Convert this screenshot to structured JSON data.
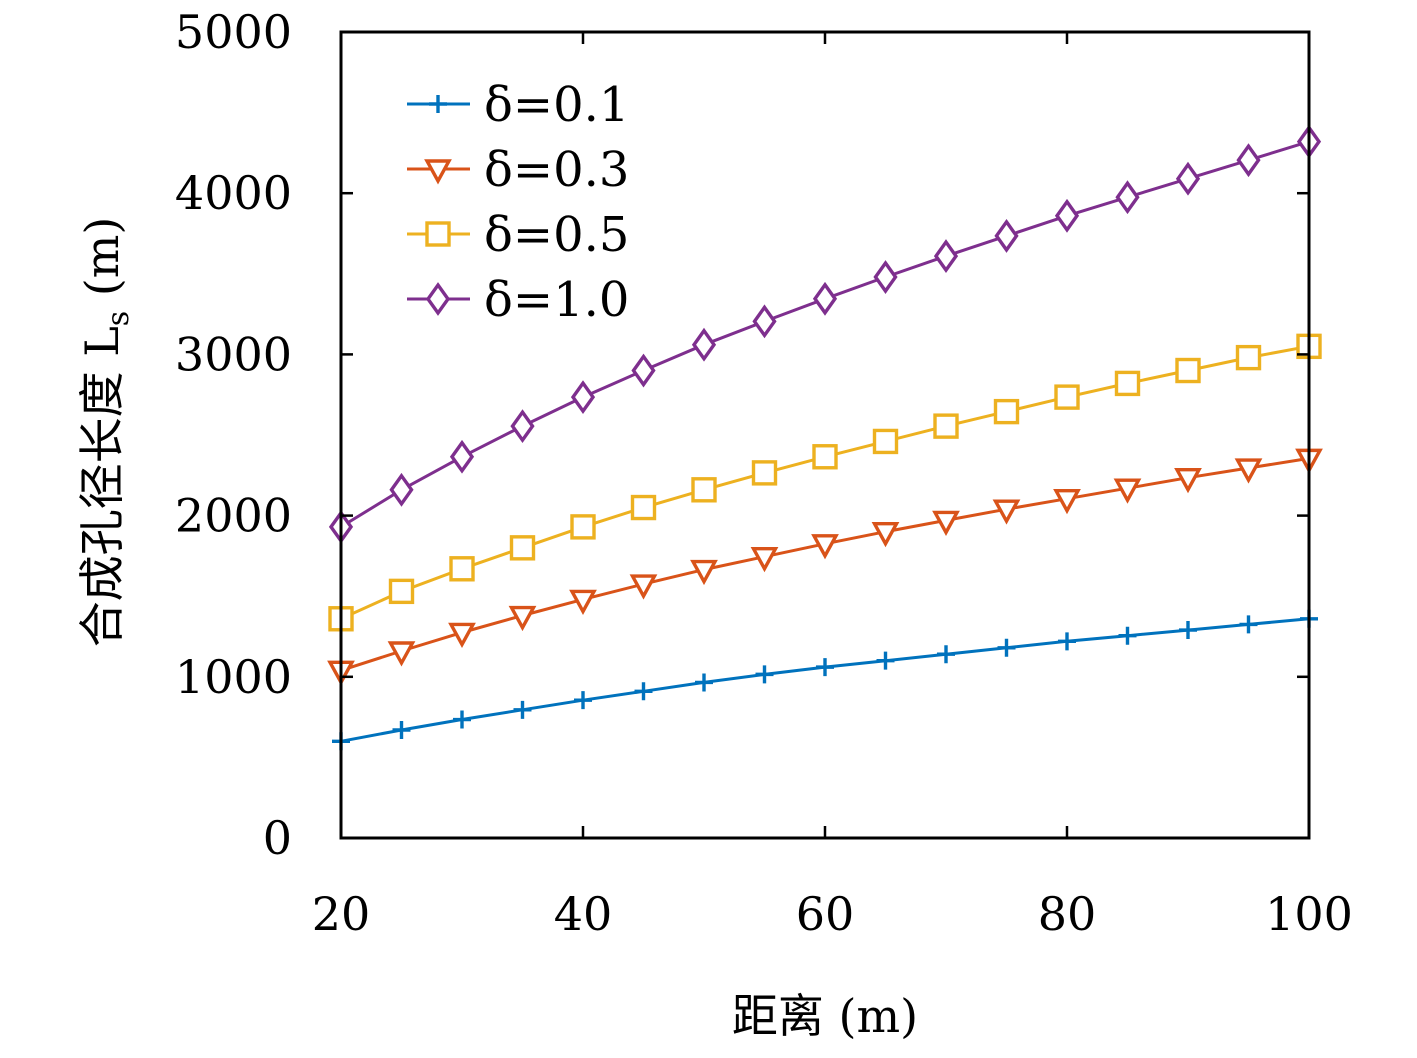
{
  "chart_data": {
    "type": "line",
    "xlabel": "距离 (m)",
    "ylabel": "合成孔径长度 L",
    "ylabel_subscript": "s",
    "ylabel_unit": " (m)",
    "xlim": [
      20,
      100
    ],
    "ylim": [
      0,
      5000
    ],
    "x_ticks": [
      20,
      40,
      60,
      80,
      100
    ],
    "y_ticks": [
      0,
      1000,
      2000,
      3000,
      4000,
      5000
    ],
    "grid": false,
    "legend_position": "top-left",
    "x": [
      20,
      25,
      30,
      35,
      40,
      45,
      50,
      55,
      60,
      65,
      70,
      75,
      80,
      85,
      90,
      95,
      100
    ],
    "series": [
      {
        "name": "δ=0.1",
        "color": "#0072BD",
        "marker": "plus",
        "values": [
          600,
          670,
          735,
          795,
          855,
          910,
          965,
          1015,
          1060,
          1100,
          1140,
          1180,
          1220,
          1255,
          1290,
          1325,
          1360
        ]
      },
      {
        "name": "δ=0.3",
        "color": "#D95319",
        "marker": "triangle-down",
        "values": [
          1040,
          1160,
          1275,
          1380,
          1480,
          1575,
          1665,
          1745,
          1825,
          1900,
          1970,
          2040,
          2105,
          2170,
          2235,
          2295,
          2355
        ]
      },
      {
        "name": "δ=0.5",
        "color": "#EDB120",
        "marker": "square",
        "values": [
          1360,
          1530,
          1670,
          1800,
          1930,
          2050,
          2160,
          2265,
          2365,
          2460,
          2555,
          2645,
          2735,
          2820,
          2900,
          2980,
          3050
        ]
      },
      {
        "name": "δ=1.0",
        "color": "#7E2F8E",
        "marker": "diamond",
        "values": [
          1930,
          2160,
          2365,
          2555,
          2735,
          2900,
          3060,
          3205,
          3345,
          3480,
          3610,
          3735,
          3860,
          3975,
          4090,
          4205,
          4320
        ]
      }
    ]
  }
}
